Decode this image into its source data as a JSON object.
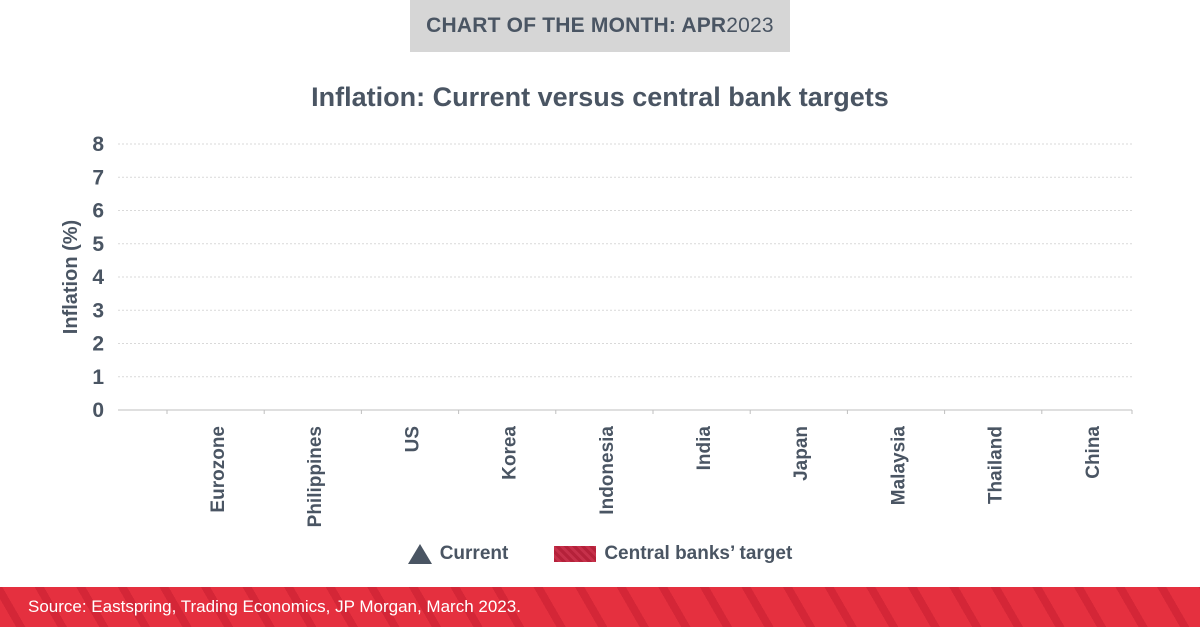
{
  "banner": {
    "label_bold": "CHART OF THE MONTH: APR",
    "label_light": "2023"
  },
  "chart_data": {
    "type": "scatter",
    "title": "Inflation: Current versus central bank targets",
    "ylabel": "Inflation (%)",
    "xlabel": "",
    "ylim": [
      0,
      8
    ],
    "yticks": [
      "0",
      "1",
      "2",
      "3",
      "4",
      "5",
      "6",
      "7",
      "8"
    ],
    "categories": [
      "Eurozone",
      "Philippines",
      "US",
      "Korea",
      "Indonesia",
      "India",
      "Japan",
      "Malaysia",
      "Thailand",
      "China"
    ],
    "series": [
      {
        "name": "Current",
        "marker": "triangle",
        "color": "#4a5563",
        "values": []
      },
      {
        "name": "Central banks’ target",
        "marker": "range-bar",
        "color": "#b5213a",
        "values": []
      }
    ],
    "grid": true,
    "legend": "bottom-center"
  },
  "legend": {
    "current_label": "Current",
    "target_label": "Central banks’ target"
  },
  "footer": {
    "source": "Source: Eastspring, Trading Economics, JP Morgan, March 2023."
  },
  "colors": {
    "text": "#4a5563",
    "banner_bg": "#d6d6d6",
    "accent": "#e5303f",
    "target": "#b5213a"
  }
}
